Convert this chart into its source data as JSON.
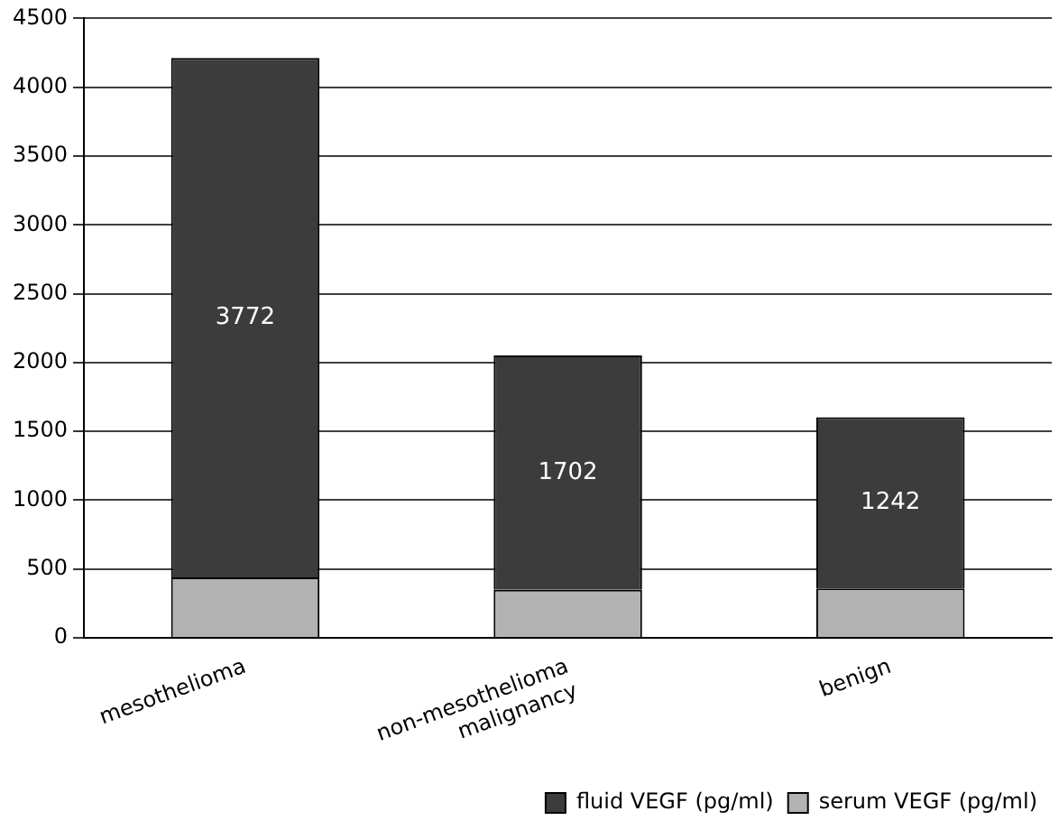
{
  "chart_data": {
    "type": "bar",
    "stacked": true,
    "categories": [
      "mesothelioma",
      "non-mesothelioma\nmalignancy",
      "benign"
    ],
    "series": [
      {
        "name": "serum VEGF (pg/ml)",
        "color": "#b2b2b2",
        "values": [
          440,
          350,
          360
        ]
      },
      {
        "name": "fluid VEGF (pg/ml)",
        "color": "#3c3c3c",
        "values": [
          3772,
          1702,
          1242
        ],
        "value_labels": [
          "3772",
          "1702",
          "1242"
        ]
      }
    ],
    "ylim": [
      0,
      4500
    ],
    "yticks": [
      0,
      500,
      1000,
      1500,
      2000,
      2500,
      3000,
      3500,
      4000,
      4500
    ],
    "grid": "y",
    "legend": "bottom right"
  }
}
